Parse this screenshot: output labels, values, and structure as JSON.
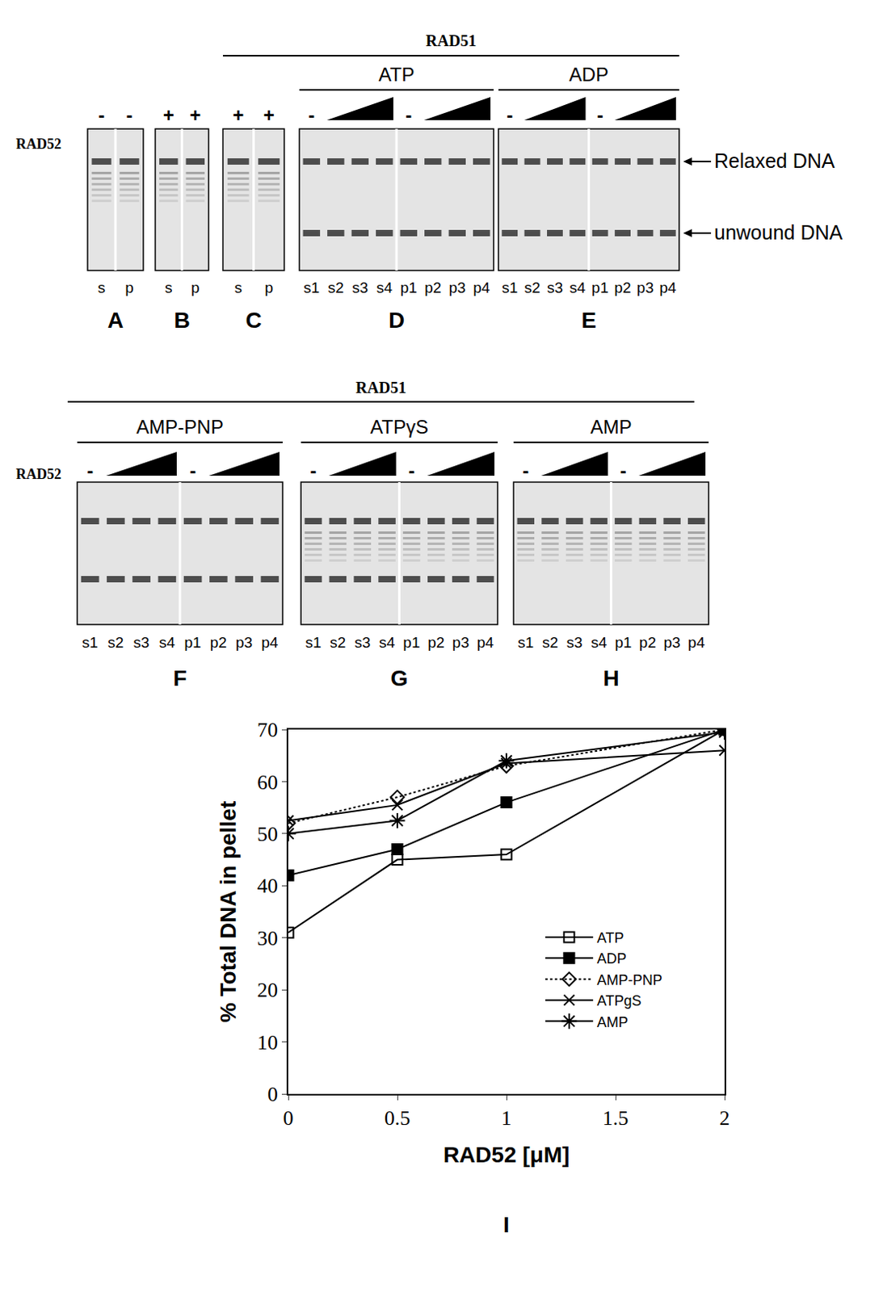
{
  "gel_rows": [
    {
      "headline": {
        "text": "RAD51",
        "panels": [
          "C",
          "D",
          "E"
        ]
      },
      "row_label": "RAD52",
      "groups": [
        {
          "title": "ATP",
          "panels": [
            "D"
          ]
        },
        {
          "title": "ADP",
          "panels": [
            "E"
          ]
        }
      ],
      "panels": [
        {
          "letter": "A",
          "top_marks": [
            "-",
            "-"
          ],
          "titration": false,
          "lanes": [
            "s",
            "p"
          ]
        },
        {
          "letter": "B",
          "top_marks": [
            "+",
            "+"
          ],
          "titration": false,
          "lanes": [
            "s",
            "p"
          ]
        },
        {
          "letter": "C",
          "top_marks": [
            "+",
            "+"
          ],
          "titration": false,
          "lanes": [
            "s",
            "p"
          ]
        },
        {
          "letter": "D",
          "top_marks": [
            "-",
            null,
            null,
            null,
            "-",
            null,
            null,
            null
          ],
          "titration": true,
          "lanes": [
            "s1",
            "s2",
            "s3",
            "s4",
            "p1",
            "p2",
            "p3",
            "p4"
          ]
        },
        {
          "letter": "E",
          "top_marks": [
            "-",
            null,
            null,
            null,
            "-",
            null,
            null,
            null
          ],
          "titration": true,
          "lanes": [
            "s1",
            "s2",
            "s3",
            "s4",
            "p1",
            "p2",
            "p3",
            "p4"
          ]
        }
      ],
      "band_labels": [
        "Relaxed DNA",
        "unwound DNA"
      ]
    },
    {
      "headline": {
        "text": "RAD51",
        "panels": [
          "F",
          "G",
          "H"
        ]
      },
      "row_label": "RAD52",
      "groups": [
        {
          "title": "AMP-PNP",
          "panels": [
            "F"
          ]
        },
        {
          "title": "ATPγS",
          "panels": [
            "G"
          ]
        },
        {
          "title": "AMP",
          "panels": [
            "H"
          ]
        }
      ],
      "panels": [
        {
          "letter": "F",
          "top_marks": [
            "-",
            null,
            null,
            null,
            "-",
            null,
            null,
            null
          ],
          "titration": true,
          "lanes": [
            "s1",
            "s2",
            "s3",
            "s4",
            "p1",
            "p2",
            "p3",
            "p4"
          ]
        },
        {
          "letter": "G",
          "top_marks": [
            "-",
            null,
            null,
            null,
            "-",
            null,
            null,
            null
          ],
          "titration": true,
          "lanes": [
            "s1",
            "s2",
            "s3",
            "s4",
            "p1",
            "p2",
            "p3",
            "p4"
          ]
        },
        {
          "letter": "H",
          "top_marks": [
            "-",
            null,
            null,
            null,
            "-",
            null,
            null,
            null
          ],
          "titration": true,
          "lanes": [
            "s1",
            "s2",
            "s3",
            "s4",
            "p1",
            "p2",
            "p3",
            "p4"
          ]
        }
      ],
      "band_labels": []
    }
  ],
  "chart_data": {
    "type": "line",
    "x_title": "RAD52 [μM]",
    "y_title": "% Total DNA in pellet",
    "annotations": [
      "I"
    ],
    "x": [
      0,
      0.5,
      1,
      2
    ],
    "series": [
      {
        "name": "ATP",
        "color": "#000000",
        "marker": "square-open",
        "line_style": "solid",
        "values": [
          31,
          45,
          46,
          70
        ]
      },
      {
        "name": "ADP",
        "color": "#000000",
        "marker": "square",
        "line_style": "solid",
        "values": [
          42,
          47,
          56,
          70
        ]
      },
      {
        "name": "AMP-PNP",
        "color": "#000000",
        "marker": "diamond-open",
        "line_style": "dot",
        "values": [
          52,
          57,
          63,
          70
        ]
      },
      {
        "name": "ATPgS",
        "color": "#000000",
        "marker": "x-thin-open",
        "line_style": "solid",
        "values": [
          52.5,
          55.5,
          63.5,
          66
        ]
      },
      {
        "name": "AMP",
        "color": "#000000",
        "marker": "asterisk-open",
        "line_style": "solid",
        "values": [
          50,
          52.5,
          64,
          69.5
        ]
      }
    ],
    "xlim": [
      0,
      2
    ],
    "xticks": [
      0,
      0.5,
      1,
      1.5,
      2
    ],
    "ylim": [
      0,
      70
    ],
    "yticks": [
      0,
      10,
      20,
      30,
      40,
      50,
      60,
      70
    ],
    "grid": false,
    "legend": "lower right"
  }
}
